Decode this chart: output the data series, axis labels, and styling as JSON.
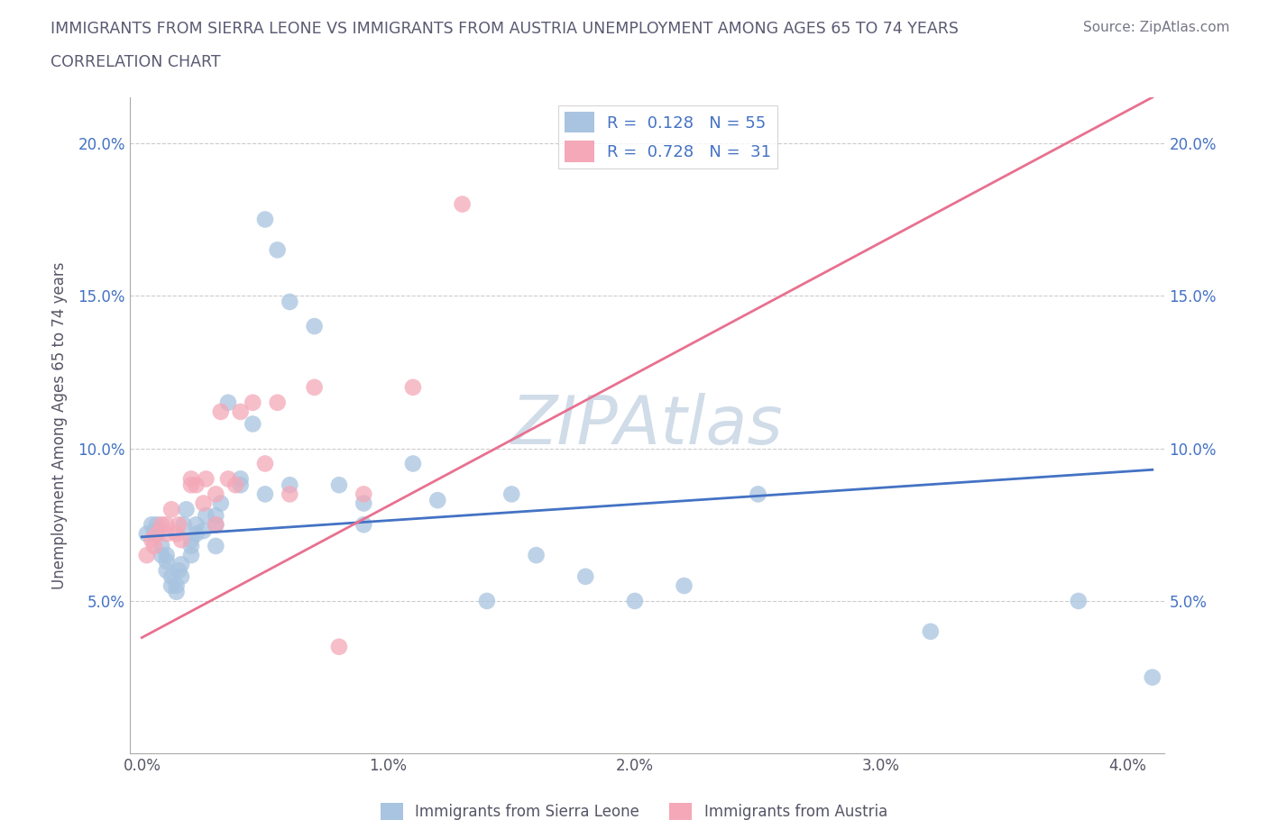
{
  "title_line1": "IMMIGRANTS FROM SIERRA LEONE VS IMMIGRANTS FROM AUSTRIA UNEMPLOYMENT AMONG AGES 65 TO 74 YEARS",
  "title_line2": "CORRELATION CHART",
  "source_text": "Source: ZipAtlas.com",
  "ylabel": "Unemployment Among Ages 65 to 74 years",
  "xlim": [
    -0.0005,
    0.0415
  ],
  "ylim": [
    0.0,
    0.215
  ],
  "yticks": [
    0.05,
    0.1,
    0.15,
    0.2
  ],
  "ytick_labels": [
    "5.0%",
    "10.0%",
    "15.0%",
    "20.0%"
  ],
  "xticks": [
    0.0,
    0.01,
    0.02,
    0.03,
    0.04
  ],
  "xtick_labels": [
    "0.0%",
    "1.0%",
    "2.0%",
    "3.0%",
    "4.0%"
  ],
  "blue_R": 0.128,
  "blue_N": 55,
  "pink_R": 0.728,
  "pink_N": 31,
  "blue_color": "#a8c4e0",
  "pink_color": "#f4a8b8",
  "blue_line_color": "#4472c4",
  "pink_line_color": "#e87090",
  "legend_label_blue": "Immigrants from Sierra Leone",
  "legend_label_pink": "Immigrants from Austria",
  "title_color": "#5a5a72",
  "watermark_color": "#d0dce8",
  "blue_line_y0": 0.071,
  "blue_line_y1": 0.093,
  "pink_line_y0": 0.038,
  "pink_line_y1": 0.215,
  "blue_scatter_x": [
    0.0002,
    0.0004,
    0.0005,
    0.0006,
    0.0006,
    0.0008,
    0.0008,
    0.001,
    0.001,
    0.001,
    0.0012,
    0.0012,
    0.0014,
    0.0014,
    0.0015,
    0.0016,
    0.0016,
    0.0017,
    0.0018,
    0.002,
    0.002,
    0.002,
    0.0022,
    0.0022,
    0.0025,
    0.0026,
    0.003,
    0.003,
    0.003,
    0.0032,
    0.0035,
    0.004,
    0.004,
    0.0045,
    0.005,
    0.005,
    0.0055,
    0.006,
    0.006,
    0.007,
    0.008,
    0.009,
    0.009,
    0.011,
    0.012,
    0.014,
    0.015,
    0.016,
    0.018,
    0.02,
    0.022,
    0.025,
    0.032,
    0.038,
    0.041
  ],
  "blue_scatter_y": [
    0.072,
    0.075,
    0.073,
    0.075,
    0.072,
    0.068,
    0.065,
    0.065,
    0.063,
    0.06,
    0.058,
    0.055,
    0.055,
    0.053,
    0.06,
    0.058,
    0.062,
    0.075,
    0.08,
    0.065,
    0.068,
    0.07,
    0.072,
    0.075,
    0.073,
    0.078,
    0.075,
    0.068,
    0.078,
    0.082,
    0.115,
    0.09,
    0.088,
    0.108,
    0.085,
    0.175,
    0.165,
    0.148,
    0.088,
    0.14,
    0.088,
    0.075,
    0.082,
    0.095,
    0.083,
    0.05,
    0.085,
    0.065,
    0.058,
    0.05,
    0.055,
    0.085,
    0.04,
    0.05,
    0.025
  ],
  "pink_scatter_x": [
    0.0002,
    0.0004,
    0.0005,
    0.0006,
    0.0008,
    0.001,
    0.001,
    0.0012,
    0.0014,
    0.0015,
    0.0016,
    0.002,
    0.002,
    0.0022,
    0.0025,
    0.0026,
    0.003,
    0.003,
    0.0032,
    0.0035,
    0.0038,
    0.004,
    0.0045,
    0.005,
    0.0055,
    0.006,
    0.007,
    0.008,
    0.009,
    0.011,
    0.013
  ],
  "pink_scatter_y": [
    0.065,
    0.07,
    0.068,
    0.072,
    0.075,
    0.075,
    0.072,
    0.08,
    0.072,
    0.075,
    0.07,
    0.09,
    0.088,
    0.088,
    0.082,
    0.09,
    0.085,
    0.075,
    0.112,
    0.09,
    0.088,
    0.112,
    0.115,
    0.095,
    0.115,
    0.085,
    0.12,
    0.035,
    0.085,
    0.12,
    0.18
  ]
}
